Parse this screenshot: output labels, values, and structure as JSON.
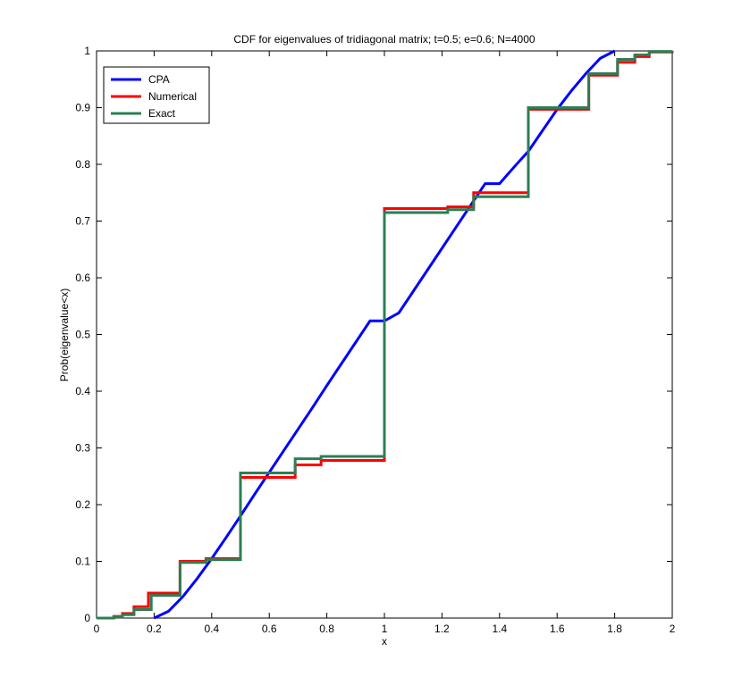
{
  "chart_data": {
    "type": "line",
    "title": "CDF for eigenvalues of tridiagonal matrix;  t=0.5; e=0.6; N=4000",
    "xlabel": "x",
    "ylabel": "Prob(eigenvalue<x)",
    "xlim": [
      0,
      2
    ],
    "ylim": [
      0,
      1
    ],
    "x_ticks": [
      0,
      0.2,
      0.4,
      0.6,
      0.8,
      1,
      1.2,
      1.4,
      1.6,
      1.8,
      2
    ],
    "x_tick_labels": [
      "0",
      "0.2",
      "0.4",
      "0.6",
      "0.8",
      "1",
      "1.2",
      "1.4",
      "1.6",
      "1.8",
      "2"
    ],
    "y_ticks": [
      0,
      0.1,
      0.2,
      0.3,
      0.4,
      0.5,
      0.6,
      0.7,
      0.8,
      0.9,
      1
    ],
    "y_tick_labels": [
      "0",
      "0.1",
      "0.2",
      "0.3",
      "0.4",
      "0.5",
      "0.6",
      "0.7",
      "0.8",
      "0.9",
      "1"
    ],
    "grid": false,
    "legend_position": "top-left",
    "series": [
      {
        "name": "CPA",
        "color": "#0000ff",
        "step": false,
        "x": [
          0.2,
          0.25,
          0.3,
          0.35,
          0.4,
          0.45,
          0.5,
          0.55,
          0.6,
          0.65,
          0.7,
          0.75,
          0.8,
          0.85,
          0.9,
          0.95,
          1.0,
          1.05,
          1.1,
          1.15,
          1.2,
          1.25,
          1.3,
          1.35,
          1.4,
          1.45,
          1.5,
          1.55,
          1.6,
          1.65,
          1.7,
          1.75,
          1.8
        ],
        "y": [
          0.0,
          0.012,
          0.038,
          0.07,
          0.105,
          0.142,
          0.18,
          0.219,
          0.257,
          0.295,
          0.333,
          0.371,
          0.41,
          0.448,
          0.486,
          0.524,
          0.5,
          0.538,
          0.576,
          0.614,
          0.652,
          0.69,
          0.728,
          0.766,
          0.757,
          0.795,
          0.823,
          0.86,
          0.897,
          0.93,
          0.96,
          0.987,
          1.0
        ]
      },
      {
        "name": "Numerical",
        "color": "#ff0000",
        "step": true,
        "x": [
          0,
          0.06,
          0.09,
          0.13,
          0.18,
          0.29,
          0.38,
          0.5,
          0.69,
          0.78,
          1.0,
          1.22,
          1.31,
          1.5,
          1.71,
          1.81,
          1.87,
          1.92,
          2.0
        ],
        "y": [
          0,
          0.003,
          0.008,
          0.02,
          0.044,
          0.1,
          0.105,
          0.248,
          0.27,
          0.278,
          0.722,
          0.725,
          0.75,
          0.897,
          0.957,
          0.98,
          0.99,
          0.998,
          1.0
        ]
      },
      {
        "name": "Exact",
        "color": "#2e7d55",
        "step": true,
        "x": [
          0,
          0.06,
          0.09,
          0.13,
          0.19,
          0.29,
          0.38,
          0.5,
          0.69,
          0.78,
          1.0,
          1.22,
          1.31,
          1.5,
          1.71,
          1.81,
          1.87,
          1.92,
          2.0
        ],
        "y": [
          0,
          0.002,
          0.006,
          0.015,
          0.04,
          0.098,
          0.103,
          0.256,
          0.281,
          0.285,
          0.715,
          0.72,
          0.743,
          0.9,
          0.96,
          0.985,
          0.993,
          0.999,
          1.0
        ]
      }
    ]
  }
}
